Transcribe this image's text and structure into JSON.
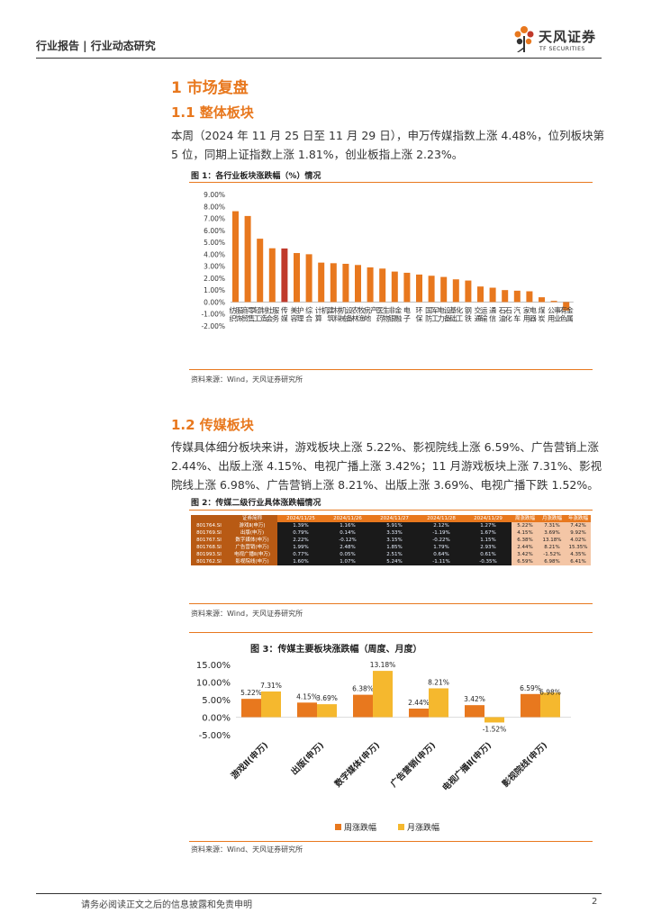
{
  "header": {
    "category": "行业报告 | 行业动态研究",
    "logo_cn": "天风证券",
    "logo_en": "TF SECURITIES"
  },
  "section1": {
    "title": "1 市场复盘"
  },
  "section1_1": {
    "title": "1.1 整体板块",
    "paragraph": "本周（2024 年 11 月 25 日至 11 月 29 日），申万传媒指数上涨 4.48%，位列板块第 5 位，同期上证指数上涨 1.81%，创业板指上涨 2.23%。"
  },
  "figure1": {
    "title": "图 1：各行业板块涨跌幅（%）情况",
    "source": "资料来源：Wind，天风证券研究所"
  },
  "section1_2": {
    "title": "1.2 传媒板块",
    "paragraph": "传媒具体细分板块来讲，游戏板块上涨 5.22%、影视院线上涨 6.59%、广告营销上涨 2.44%、出版上涨 4.15%、电视广播上涨 3.42%；11 月游戏板块上涨 7.31%、影视院线上涨 6.98%、广告营销上涨 8.21%、出版上涨 3.69%、电视广播下跌 1.52%。"
  },
  "figure2": {
    "title": "图 2：传媒二级行业具体涨跌幅情况",
    "source": "资料来源：Wind，天风证券研究所",
    "columns": [
      "",
      "证券简称",
      "2024/11/25",
      "2024/11/26",
      "2024/11/27",
      "2024/11/28",
      "2024/11/29",
      "周涨跌幅",
      "月涨跌幅",
      "年涨跌幅"
    ],
    "rows": [
      [
        "801764.SI",
        "游戏Ⅱ(申万)",
        "1.39%",
        "1.16%",
        "5.91%",
        "2.12%",
        "1.27%",
        "5.22%",
        "7.31%",
        "7.42%"
      ],
      [
        "801769.SI",
        "出版(申万)",
        "0.79%",
        "0.14%",
        "3.33%",
        "-1.19%",
        "1.67%",
        "4.15%",
        "3.69%",
        "9.92%"
      ],
      [
        "801767.SI",
        "数字媒体(申万)",
        "2.22%",
        "-0.12%",
        "3.15%",
        "-0.22%",
        "1.15%",
        "6.38%",
        "13.18%",
        "4.02%"
      ],
      [
        "801768.SI",
        "广告营销(申万)",
        "1.99%",
        "2.48%",
        "1.85%",
        "1.79%",
        "2.93%",
        "2.44%",
        "8.21%",
        "15.35%"
      ],
      [
        "801993.SI",
        "电视广播Ⅱ(申万)",
        "0.77%",
        "0.05%",
        "2.51%",
        "0.64%",
        "0.61%",
        "3.42%",
        "-1.52%",
        "4.35%"
      ],
      [
        "801762.SI",
        "影视院线(申万)",
        "1.60%",
        "1.07%",
        "5.24%",
        "-1.11%",
        "-0.35%",
        "6.59%",
        "6.98%",
        "6.41%"
      ]
    ]
  },
  "figure3": {
    "title": "图 3：传媒主要板块涨跌幅（周度、月度）",
    "source": "资料来源：Wind、天风证券研究所"
  },
  "chart_data": [
    {
      "type": "bar",
      "title": "",
      "xlabel": "",
      "ylabel": "",
      "ylim": [
        -2,
        9
      ],
      "yticks": [
        "9.00%",
        "8.00%",
        "7.00%",
        "6.00%",
        "5.00%",
        "4.00%",
        "3.00%",
        "2.00%",
        "1.00%",
        "0.00%",
        "-1.00%",
        "-2.00%"
      ],
      "grid": false,
      "highlight_color": "#c0392b",
      "bar_color": "#e8781e",
      "categories": [
        "纺织服饰",
        "商贸零售",
        "轻工制造",
        "社会服务",
        "传媒",
        "美容护理",
        "综合",
        "计算机",
        "建筑材料",
        "机械设备",
        "农林牧渔",
        "房地产",
        "医药生物",
        "非银金融",
        "电子",
        "环保",
        "国防军工",
        "电力设备",
        "基础化工",
        "钢铁",
        "交通运输",
        "通信",
        "石油石化",
        "汽车",
        "家用电器",
        "煤炭",
        "公用事业",
        "有色金属"
      ],
      "values": [
        7.6,
        7.2,
        5.3,
        4.5,
        4.48,
        4.1,
        4.0,
        3.3,
        3.25,
        3.2,
        3.1,
        2.9,
        2.8,
        2.55,
        2.45,
        2.3,
        2.2,
        2.1,
        1.9,
        1.8,
        1.3,
        1.2,
        1.0,
        0.95,
        0.9,
        0.4,
        0.1,
        -0.7
      ],
      "highlight": "传媒"
    },
    {
      "type": "bar",
      "title": "",
      "xlabel": "",
      "ylabel": "",
      "ylim": [
        -5,
        15
      ],
      "yticks": [
        "15.00%",
        "10.00%",
        "5.00%",
        "0.00%",
        "-5.00%"
      ],
      "grid": false,
      "legend": "bottom",
      "categories": [
        "游戏Ⅱ(申万)",
        "出版(申万)",
        "数字媒体(申万)",
        "广告营销(申万)",
        "电视广播Ⅱ(申万)",
        "影视院线(申万)"
      ],
      "series": [
        {
          "name": "周涨跌幅",
          "color": "#e8781e",
          "values": [
            5.22,
            4.15,
            6.38,
            2.44,
            3.42,
            6.59
          ],
          "labels": [
            "5.22%",
            "4.15%",
            "6.38%",
            "2.44%",
            "3.42%",
            "6.59%"
          ]
        },
        {
          "name": "月涨跌幅",
          "color": "#f5b82e",
          "values": [
            7.31,
            3.69,
            13.18,
            8.21,
            -1.52,
            6.98
          ],
          "labels": [
            "7.31%",
            "3.69%",
            "13.18%",
            "8.21%",
            "-1.52%",
            "6.98%"
          ]
        }
      ]
    }
  ],
  "footer": {
    "disclaimer": "请务必阅读正文之后的信息披露和免责申明",
    "page": "2"
  }
}
